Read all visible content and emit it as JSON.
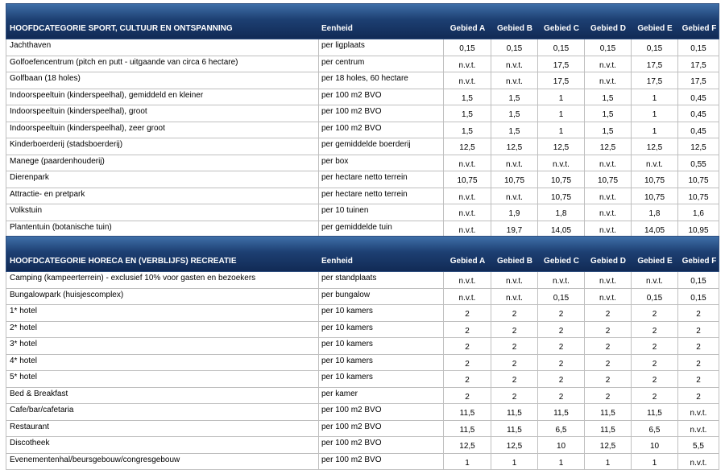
{
  "table1": {
    "title": "HOOFDCATEGORIE SPORT, CULTUUR EN ONTSPANNING",
    "unit_header": "Eenheid",
    "area_headers": [
      "Gebied A",
      "Gebied B",
      "Gebied C",
      "Gebied D",
      "Gebied E",
      "Gebied F"
    ],
    "rows": [
      {
        "name": "Jachthaven",
        "unit": "per ligplaats",
        "values": [
          "0,15",
          "0,15",
          "0,15",
          "0,15",
          "0,15",
          "0,15"
        ]
      },
      {
        "name": "Golfoefencentrum (pitch en putt - uitgaande van circa 6 hectare)",
        "unit": "per centrum",
        "values": [
          "n.v.t.",
          "n.v.t.",
          "17,5",
          "n.v.t.",
          "17,5",
          "17,5"
        ]
      },
      {
        "name": "Golfbaan (18 holes)",
        "unit": "per 18 holes, 60 hectare",
        "values": [
          "n.v.t.",
          "n.v.t.",
          "17,5",
          "n.v.t.",
          "17,5",
          "17,5"
        ]
      },
      {
        "name": "Indoorspeeltuin (kinderspeelhal), gemiddeld en kleiner",
        "unit": "per 100 m2 BVO",
        "values": [
          "1,5",
          "1,5",
          "1",
          "1,5",
          "1",
          "0,45"
        ]
      },
      {
        "name": "Indoorspeeltuin (kinderspeelhal), groot",
        "unit": "per 100 m2 BVO",
        "values": [
          "1,5",
          "1,5",
          "1",
          "1,5",
          "1",
          "0,45"
        ]
      },
      {
        "name": "Indoorspeeltuin (kinderspeelhal), zeer groot",
        "unit": "per 100 m2 BVO",
        "values": [
          "1,5",
          "1,5",
          "1",
          "1,5",
          "1",
          "0,45"
        ]
      },
      {
        "name": "Kinderboerderij (stadsboerderij)",
        "unit": "per gemiddelde boerderij",
        "values": [
          "12,5",
          "12,5",
          "12,5",
          "12,5",
          "12,5",
          "12,5"
        ]
      },
      {
        "name": "Manege (paardenhouderij)",
        "unit": "per box",
        "values": [
          "n.v.t.",
          "n.v.t.",
          "n.v.t.",
          "n.v.t.",
          "n.v.t.",
          "0,55"
        ]
      },
      {
        "name": "Dierenpark",
        "unit": "per hectare netto terrein",
        "values": [
          "10,75",
          "10,75",
          "10,75",
          "10,75",
          "10,75",
          "10,75"
        ]
      },
      {
        "name": "Attractie- en pretpark",
        "unit": "per hectare netto terrein",
        "values": [
          "n.v.t.",
          "n.v.t.",
          "10,75",
          "n.v.t.",
          "10,75",
          "10,75"
        ]
      },
      {
        "name": "Volkstuin",
        "unit": "per 10 tuinen",
        "values": [
          "n.v.t.",
          "1,9",
          "1,8",
          "n.v.t.",
          "1,8",
          "1,6"
        ]
      },
      {
        "name": "Plantentuin (botanische tuin)",
        "unit": "per gemiddelde tuin",
        "values": [
          "n.v.t.",
          "19,7",
          "14,05",
          "n.v.t.",
          "14,05",
          "10,95"
        ]
      }
    ]
  },
  "table2": {
    "title": "HOOFDCATEGORIE HORECA EN (VERBLIJFS) RECREATIE",
    "unit_header": "Eenheid",
    "area_headers": [
      "Gebied A",
      "Gebied B",
      "Gebied C",
      "Gebied D",
      "Gebied E",
      "Gebied F"
    ],
    "rows": [
      {
        "name": "Camping (kampeerterrein) - exclusief 10% voor gasten en bezoekers",
        "unit": "per standplaats",
        "values": [
          "n.v.t.",
          "n.v.t.",
          "n.v.t.",
          "n.v.t.",
          "n.v.t.",
          "0,15"
        ]
      },
      {
        "name": "Bungalowpark (huisjescomplex)",
        "unit": "per bungalow",
        "values": [
          "n.v.t.",
          "n.v.t.",
          "0,15",
          "n.v.t.",
          "0,15",
          "0,15"
        ]
      },
      {
        "name": "1* hotel",
        "unit": "per 10 kamers",
        "values": [
          "2",
          "2",
          "2",
          "2",
          "2",
          "2"
        ]
      },
      {
        "name": "2* hotel",
        "unit": "per 10 kamers",
        "values": [
          "2",
          "2",
          "2",
          "2",
          "2",
          "2"
        ]
      },
      {
        "name": "3* hotel",
        "unit": "per 10 kamers",
        "values": [
          "2",
          "2",
          "2",
          "2",
          "2",
          "2"
        ]
      },
      {
        "name": "4* hotel",
        "unit": "per 10 kamers",
        "values": [
          "2",
          "2",
          "2",
          "2",
          "2",
          "2"
        ]
      },
      {
        "name": "5* hotel",
        "unit": "per 10 kamers",
        "values": [
          "2",
          "2",
          "2",
          "2",
          "2",
          "2"
        ]
      },
      {
        "name": "Bed & Breakfast",
        "unit": "per kamer",
        "values": [
          "2",
          "2",
          "2",
          "2",
          "2",
          "2"
        ]
      },
      {
        "name": "Cafe/bar/cafetaria",
        "unit": "per 100 m2 BVO",
        "values": [
          "11,5",
          "11,5",
          "11,5",
          "11,5",
          "11,5",
          "n.v.t."
        ]
      },
      {
        "name": "Restaurant",
        "unit": "per 100 m2 BVO",
        "values": [
          "11,5",
          "11,5",
          "6,5",
          "11,5",
          "6,5",
          "n.v.t."
        ]
      },
      {
        "name": "Discotheek",
        "unit": "per 100 m2 BVO",
        "values": [
          "12,5",
          "12,5",
          "10",
          "12,5",
          "10",
          "5,5"
        ]
      },
      {
        "name": "Evenementenhal/beursgebouw/congresgebouw",
        "unit": "per 100 m2 BVO",
        "values": [
          "1",
          "1",
          "1",
          "1",
          "1",
          "n.v.t."
        ]
      }
    ]
  },
  "colors": {
    "header_top": "#3f6fa8",
    "header_bottom": "#112a55",
    "grid": "#bfbfbf"
  }
}
